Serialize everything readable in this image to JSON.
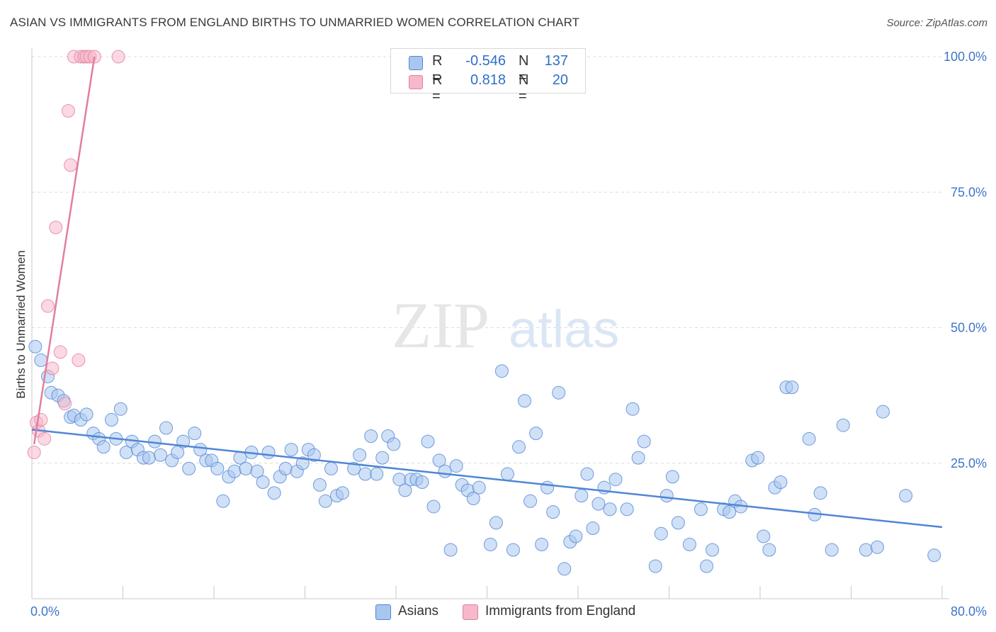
{
  "title": "ASIAN VS IMMIGRANTS FROM ENGLAND BIRTHS TO UNMARRIED WOMEN CORRELATION CHART",
  "source": "Source: ZipAtlas.com",
  "watermark": {
    "zip": "ZIP",
    "atlas": "atlas"
  },
  "legend": {
    "rows": [
      {
        "r_label": "R =",
        "r_value": "-0.546",
        "n_label": "N =",
        "n_value": "137",
        "fill": "#a9c6ef",
        "stroke": "#4f86d6"
      },
      {
        "r_label": "R =",
        "r_value": "0.818",
        "n_label": "N =",
        "n_value": "20",
        "fill": "#f7b8cb",
        "stroke": "#e07fa0"
      }
    ]
  },
  "bottom_legend": {
    "asians": {
      "label": "Asians",
      "fill": "#a9c6ef",
      "stroke": "#4f86d6"
    },
    "england": {
      "label": "Immigrants from England",
      "fill": "#f7b8cb",
      "stroke": "#e07fa0"
    }
  },
  "chart_data": {
    "type": "scatter",
    "title": "ASIAN VS IMMIGRANTS FROM ENGLAND BIRTHS TO UNMARRIED WOMEN CORRELATION CHART",
    "ylabel": "Births to Unmarried Women",
    "xlabel": "",
    "xlim": [
      0,
      80
    ],
    "ylim": [
      0,
      100
    ],
    "x_tick_labels": [
      "0.0%",
      "80.0%"
    ],
    "y_tick_labels": [
      "100.0%",
      "75.0%",
      "50.0%",
      "25.0%"
    ],
    "y_ticks": [
      100,
      75,
      50,
      25
    ],
    "grid": true,
    "legend_position": "top-center",
    "series": [
      {
        "name": "Asians",
        "color": "#4f86d6",
        "fill": "#a9c6ef",
        "trend": {
          "x": [
            0,
            80
          ],
          "y": [
            31.2,
            13.2
          ]
        },
        "points": [
          [
            0.3,
            46.5
          ],
          [
            0.8,
            44
          ],
          [
            1.4,
            41
          ],
          [
            1.7,
            38
          ],
          [
            2.3,
            37.5
          ],
          [
            2.8,
            36.5
          ],
          [
            3.4,
            33.5
          ],
          [
            3.7,
            33.8
          ],
          [
            4.3,
            33
          ],
          [
            4.8,
            34
          ],
          [
            5.4,
            30.5
          ],
          [
            5.9,
            29.5
          ],
          [
            6.3,
            28
          ],
          [
            7,
            33
          ],
          [
            7.4,
            29.5
          ],
          [
            7.8,
            35
          ],
          [
            8.3,
            27
          ],
          [
            8.8,
            29
          ],
          [
            9.3,
            27.5
          ],
          [
            9.8,
            26
          ],
          [
            10.3,
            26
          ],
          [
            10.8,
            29
          ],
          [
            11.3,
            26.5
          ],
          [
            11.8,
            31.5
          ],
          [
            12.3,
            25.5
          ],
          [
            12.8,
            27
          ],
          [
            13.3,
            29
          ],
          [
            13.8,
            24
          ],
          [
            14.3,
            30.5
          ],
          [
            14.8,
            27.5
          ],
          [
            15.3,
            25.5
          ],
          [
            15.8,
            25.5
          ],
          [
            16.3,
            24
          ],
          [
            16.8,
            18
          ],
          [
            17.3,
            22.5
          ],
          [
            17.8,
            23.5
          ],
          [
            18.3,
            26
          ],
          [
            18.8,
            24
          ],
          [
            19.3,
            27
          ],
          [
            19.8,
            23.5
          ],
          [
            20.3,
            21.5
          ],
          [
            20.8,
            27
          ],
          [
            21.3,
            19.5
          ],
          [
            21.8,
            22.5
          ],
          [
            22.3,
            24
          ],
          [
            22.8,
            27.5
          ],
          [
            23.3,
            23.5
          ],
          [
            23.8,
            25
          ],
          [
            24.3,
            27.5
          ],
          [
            24.8,
            26.5
          ],
          [
            25.3,
            21
          ],
          [
            25.8,
            18
          ],
          [
            26.3,
            24
          ],
          [
            26.8,
            19
          ],
          [
            27.3,
            19.5
          ],
          [
            28.3,
            24
          ],
          [
            28.8,
            26.5
          ],
          [
            29.3,
            23
          ],
          [
            29.8,
            30
          ],
          [
            30.3,
            23
          ],
          [
            30.8,
            26
          ],
          [
            31.3,
            30
          ],
          [
            31.8,
            28.5
          ],
          [
            32.3,
            22
          ],
          [
            32.8,
            20
          ],
          [
            33.3,
            22
          ],
          [
            33.8,
            22
          ],
          [
            34.3,
            21.5
          ],
          [
            34.8,
            29
          ],
          [
            35.3,
            17
          ],
          [
            35.8,
            25.5
          ],
          [
            36.3,
            23.5
          ],
          [
            36.8,
            9
          ],
          [
            37.3,
            24.5
          ],
          [
            37.8,
            21
          ],
          [
            38.3,
            20
          ],
          [
            38.8,
            18.5
          ],
          [
            39.3,
            20.5
          ],
          [
            40.3,
            10
          ],
          [
            40.8,
            14
          ],
          [
            41.3,
            42
          ],
          [
            41.8,
            23
          ],
          [
            42.3,
            9
          ],
          [
            42.8,
            28
          ],
          [
            43.3,
            36.5
          ],
          [
            43.8,
            18
          ],
          [
            44.3,
            30.5
          ],
          [
            44.8,
            10
          ],
          [
            45.3,
            20.5
          ],
          [
            45.8,
            16
          ],
          [
            46.3,
            38
          ],
          [
            46.8,
            5.5
          ],
          [
            47.3,
            10.5
          ],
          [
            47.8,
            11.5
          ],
          [
            48.3,
            19
          ],
          [
            48.8,
            23
          ],
          [
            49.3,
            13
          ],
          [
            49.8,
            17.5
          ],
          [
            50.3,
            20.5
          ],
          [
            50.8,
            16.5
          ],
          [
            51.3,
            22
          ],
          [
            52.3,
            16.5
          ],
          [
            52.8,
            35
          ],
          [
            53.3,
            26
          ],
          [
            53.8,
            29
          ],
          [
            54.8,
            6
          ],
          [
            55.3,
            12
          ],
          [
            55.8,
            19
          ],
          [
            56.3,
            22.5
          ],
          [
            56.8,
            14
          ],
          [
            57.8,
            10
          ],
          [
            58.8,
            16.5
          ],
          [
            59.3,
            6
          ],
          [
            59.8,
            9
          ],
          [
            60.8,
            16.5
          ],
          [
            61.3,
            16
          ],
          [
            61.8,
            18
          ],
          [
            62.3,
            17
          ],
          [
            63.3,
            25.5
          ],
          [
            63.8,
            26
          ],
          [
            64.3,
            11.5
          ],
          [
            64.8,
            9
          ],
          [
            65.3,
            20.5
          ],
          [
            65.8,
            21.5
          ],
          [
            66.3,
            39
          ],
          [
            66.8,
            39
          ],
          [
            68.3,
            29.5
          ],
          [
            68.8,
            15.5
          ],
          [
            69.3,
            19.5
          ],
          [
            70.3,
            9
          ],
          [
            71.3,
            32
          ],
          [
            73.3,
            9
          ],
          [
            74.3,
            9.5
          ],
          [
            74.8,
            34.5
          ],
          [
            76.8,
            19
          ],
          [
            79.3,
            8
          ]
        ]
      },
      {
        "name": "Immigrants from England",
        "color": "#e07fa0",
        "fill": "#f7b8cb",
        "trend": {
          "x": [
            0.2,
            5.5
          ],
          "y": [
            28.5,
            100
          ]
        },
        "points": [
          [
            0.2,
            27
          ],
          [
            0.4,
            32.5
          ],
          [
            0.6,
            31
          ],
          [
            0.8,
            33
          ],
          [
            1.1,
            29.5
          ],
          [
            1.4,
            54
          ],
          [
            1.8,
            42.5
          ],
          [
            2.1,
            68.5
          ],
          [
            2.5,
            45.5
          ],
          [
            2.9,
            36
          ],
          [
            3.2,
            90
          ],
          [
            3.4,
            80
          ],
          [
            3.7,
            100
          ],
          [
            4.1,
            44
          ],
          [
            4.3,
            100
          ],
          [
            4.6,
            100
          ],
          [
            4.8,
            100
          ],
          [
            5.1,
            100
          ],
          [
            5.5,
            100
          ],
          [
            7.6,
            100
          ]
        ]
      }
    ]
  }
}
